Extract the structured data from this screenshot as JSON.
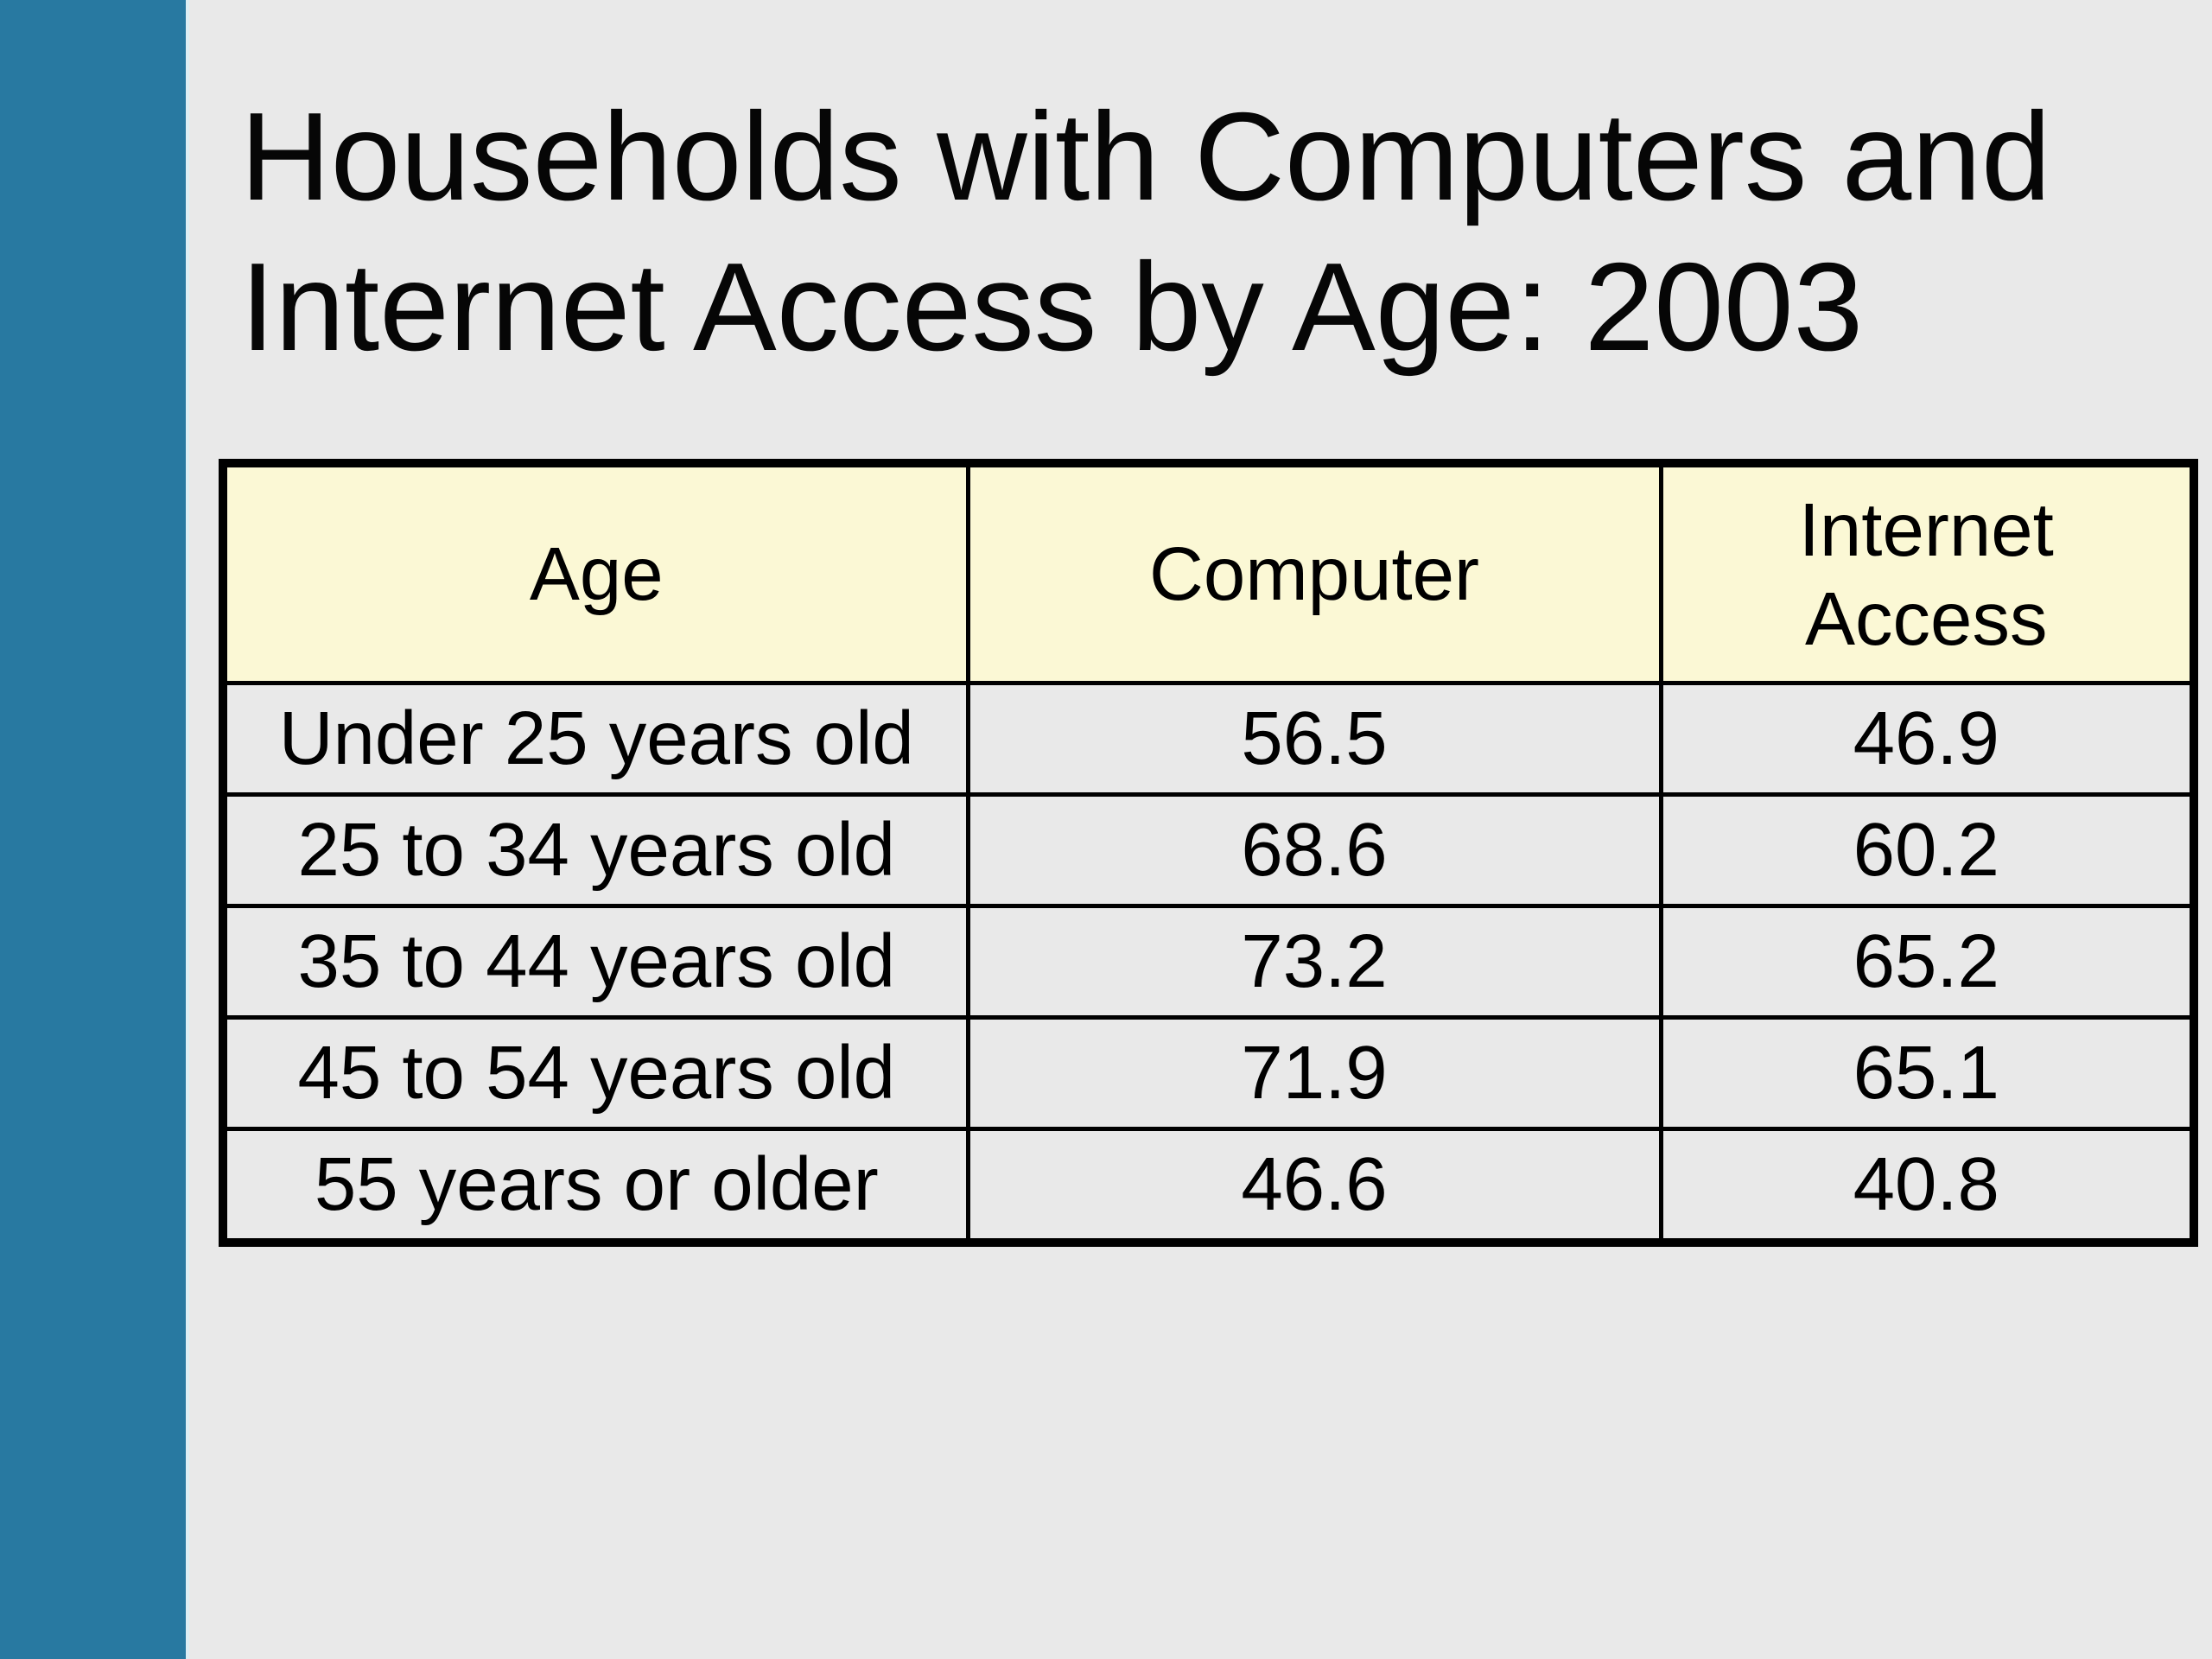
{
  "slide": {
    "title_lines": [
      "Households with Computers and",
      "Internet Access by Age: 2003"
    ],
    "table": {
      "columns": [
        "Age",
        "Computer",
        "Internet Access"
      ],
      "rows": [
        {
          "age": "Under 25 years old",
          "computer": "56.5",
          "internet_access": "46.9"
        },
        {
          "age": "25 to 34 years old",
          "computer": "68.6",
          "internet_access": "60.2"
        },
        {
          "age": "35 to 44 years old",
          "computer": "73.2",
          "internet_access": "65.2"
        },
        {
          "age": "45 to 54 years old",
          "computer": "71.9",
          "internet_access": "65.1"
        },
        {
          "age": "55 years or older",
          "computer": "46.6",
          "internet_access": "40.8"
        }
      ]
    },
    "colors": {
      "accent_bar": "#2879A1",
      "accent_bar_edge": "#DDEEF4",
      "background": "#E9E9E9",
      "table_header_fill": "#FBF8D5",
      "table_row_fill": "#E9E9E9",
      "table_border": "#000000",
      "text": "#060606"
    }
  },
  "chart_data": {
    "type": "table",
    "title": "Households with Computers and Internet Access by Age: 2003",
    "columns": [
      "Age",
      "Computer",
      "Internet Access"
    ],
    "rows": [
      [
        "Under 25 years old",
        56.5,
        46.9
      ],
      [
        "25 to 34 years old",
        68.6,
        60.2
      ],
      [
        "35 to 44 years old",
        73.2,
        65.2
      ],
      [
        "45 to 54 years old",
        71.9,
        65.1
      ],
      [
        "55 years or older",
        46.6,
        40.8
      ]
    ]
  }
}
